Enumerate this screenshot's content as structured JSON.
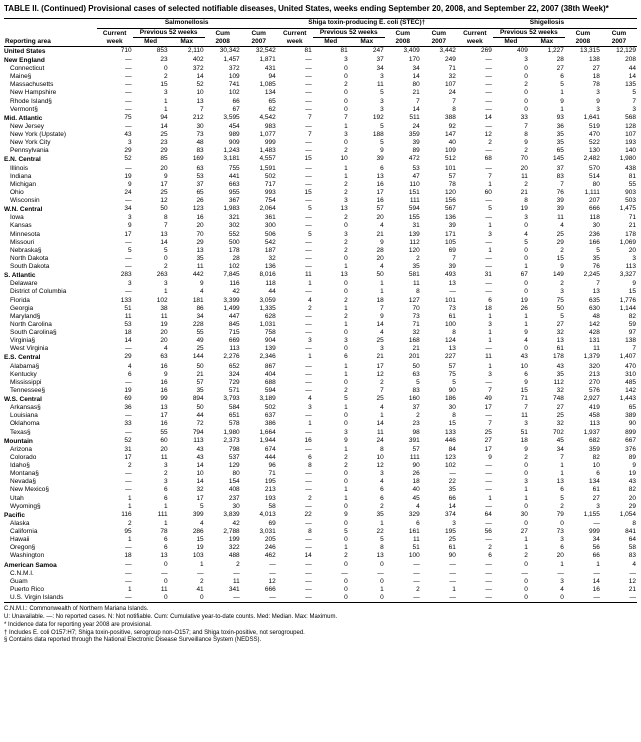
{
  "title": "TABLE II. (Continued) Provisional cases of selected notifiable diseases, United States, weeks ending September 20, 2008, and September 22, 2007 (38th Week)*",
  "diseases": [
    "Salmonellosis",
    "Shiga toxin-producing E. coli (STEC)†",
    "Shigellosis"
  ],
  "period_label": "Previous 52 weeks",
  "cols": [
    "Current week",
    "Med",
    "Max",
    "Cum 2008",
    "Cum 2007"
  ],
  "reporting_label": "Reporting area",
  "footnotes": [
    "C.N.M.I.: Commonwealth of Northern Mariana Islands.",
    "U: Unavailable.   —: No reported cases.   N: Not notifiable.   Cum: Cumulative year-to-date counts.   Med: Median.   Max: Maximum.",
    "* Incidence data for reporting year 2008 are provisional.",
    "† Includes E. coli O157:H7; Shiga toxin-positive, serogroup non-O157; and Shiga toxin-positive, not serogrouped.",
    "§ Contains data reported through the National Electronic Disease Surveillance System (NEDSS)."
  ],
  "sections": [
    {
      "h": [
        "United States",
        "710",
        "853",
        "2,110",
        "30,342",
        "32,542",
        "81",
        "81",
        "247",
        "3,409",
        "3,442",
        "269",
        "409",
        "1,227",
        "13,315",
        "12,129"
      ],
      "r": []
    },
    {
      "h": [
        "New England",
        "—",
        "23",
        "402",
        "1,457",
        "1,871",
        "—",
        "3",
        "37",
        "170",
        "249",
        "—",
        "3",
        "28",
        "138",
        "208"
      ],
      "r": [
        [
          "Connecticut",
          "—",
          "0",
          "372",
          "372",
          "431",
          "—",
          "0",
          "34",
          "34",
          "71",
          "—",
          "0",
          "27",
          "27",
          "44"
        ],
        [
          "Maine§",
          "—",
          "2",
          "14",
          "109",
          "94",
          "—",
          "0",
          "3",
          "14",
          "32",
          "—",
          "0",
          "6",
          "18",
          "14"
        ],
        [
          "Massachusetts",
          "—",
          "15",
          "52",
          "741",
          "1,085",
          "—",
          "2",
          "11",
          "80",
          "107",
          "—",
          "2",
          "5",
          "78",
          "135"
        ],
        [
          "New Hampshire",
          "—",
          "3",
          "10",
          "102",
          "134",
          "—",
          "0",
          "5",
          "21",
          "24",
          "—",
          "0",
          "1",
          "3",
          "5"
        ],
        [
          "Rhode Island§",
          "—",
          "1",
          "13",
          "66",
          "65",
          "—",
          "0",
          "3",
          "7",
          "7",
          "—",
          "0",
          "9",
          "9",
          "7"
        ],
        [
          "Vermont§",
          "—",
          "1",
          "7",
          "67",
          "62",
          "—",
          "0",
          "3",
          "14",
          "8",
          "—",
          "0",
          "1",
          "3",
          "3"
        ]
      ]
    },
    {
      "h": [
        "Mid. Atlantic",
        "75",
        "94",
        "212",
        "3,595",
        "4,542",
        "7",
        "7",
        "192",
        "511",
        "388",
        "14",
        "33",
        "93",
        "1,641",
        "568"
      ],
      "r": [
        [
          "New Jersey",
          "—",
          "14",
          "30",
          "454",
          "983",
          "—",
          "1",
          "5",
          "24",
          "92",
          "—",
          "7",
          "36",
          "519",
          "128"
        ],
        [
          "New York (Upstate)",
          "43",
          "25",
          "73",
          "989",
          "1,077",
          "7",
          "3",
          "188",
          "359",
          "147",
          "12",
          "8",
          "35",
          "470",
          "107"
        ],
        [
          "New York City",
          "3",
          "23",
          "48",
          "909",
          "999",
          "—",
          "0",
          "5",
          "39",
          "40",
          "2",
          "9",
          "35",
          "522",
          "193"
        ],
        [
          "Pennsylvania",
          "29",
          "29",
          "83",
          "1,243",
          "1,483",
          "—",
          "2",
          "9",
          "89",
          "109",
          "—",
          "2",
          "65",
          "130",
          "140"
        ]
      ]
    },
    {
      "h": [
        "E.N. Central",
        "52",
        "85",
        "169",
        "3,181",
        "4,557",
        "15",
        "10",
        "39",
        "472",
        "512",
        "68",
        "70",
        "145",
        "2,482",
        "1,980"
      ],
      "r": [
        [
          "Illinois",
          "—",
          "20",
          "63",
          "755",
          "1,591",
          "—",
          "1",
          "6",
          "53",
          "101",
          "—",
          "20",
          "37",
          "570",
          "438"
        ],
        [
          "Indiana",
          "19",
          "9",
          "53",
          "441",
          "502",
          "—",
          "1",
          "13",
          "47",
          "57",
          "7",
          "11",
          "83",
          "514",
          "81"
        ],
        [
          "Michigan",
          "9",
          "17",
          "37",
          "663",
          "717",
          "—",
          "2",
          "16",
          "110",
          "78",
          "1",
          "2",
          "7",
          "80",
          "55"
        ],
        [
          "Ohio",
          "24",
          "25",
          "65",
          "955",
          "993",
          "15",
          "2",
          "17",
          "151",
          "120",
          "60",
          "21",
          "76",
          "1,111",
          "903"
        ],
        [
          "Wisconsin",
          "—",
          "12",
          "26",
          "367",
          "754",
          "—",
          "3",
          "16",
          "111",
          "156",
          "—",
          "8",
          "39",
          "207",
          "503"
        ]
      ]
    },
    {
      "h": [
        "W.N. Central",
        "34",
        "50",
        "123",
        "1,983",
        "2,064",
        "5",
        "13",
        "57",
        "594",
        "567",
        "5",
        "19",
        "39",
        "666",
        "1,475"
      ],
      "r": [
        [
          "Iowa",
          "3",
          "8",
          "16",
          "321",
          "361",
          "—",
          "2",
          "20",
          "155",
          "136",
          "—",
          "3",
          "11",
          "118",
          "71"
        ],
        [
          "Kansas",
          "9",
          "7",
          "20",
          "302",
          "300",
          "—",
          "0",
          "4",
          "31",
          "39",
          "1",
          "0",
          "4",
          "30",
          "21"
        ],
        [
          "Minnesota",
          "17",
          "13",
          "70",
          "552",
          "506",
          "5",
          "3",
          "21",
          "139",
          "171",
          "3",
          "4",
          "25",
          "236",
          "178"
        ],
        [
          "Missouri",
          "—",
          "14",
          "29",
          "500",
          "542",
          "—",
          "2",
          "9",
          "112",
          "105",
          "—",
          "5",
          "29",
          "166",
          "1,069"
        ],
        [
          "Nebraska§",
          "5",
          "5",
          "13",
          "178",
          "187",
          "—",
          "2",
          "28",
          "120",
          "69",
          "1",
          "0",
          "2",
          "5",
          "20"
        ],
        [
          "North Dakota",
          "—",
          "0",
          "35",
          "28",
          "32",
          "—",
          "0",
          "20",
          "2",
          "7",
          "—",
          "0",
          "15",
          "35",
          "3"
        ],
        [
          "South Dakota",
          "—",
          "2",
          "11",
          "102",
          "136",
          "—",
          "1",
          "4",
          "35",
          "39",
          "—",
          "1",
          "9",
          "76",
          "113"
        ]
      ]
    },
    {
      "h": [
        "S. Atlantic",
        "283",
        "263",
        "442",
        "7,845",
        "8,016",
        "11",
        "13",
        "50",
        "581",
        "493",
        "31",
        "67",
        "149",
        "2,245",
        "3,327"
      ],
      "r": [
        [
          "Delaware",
          "3",
          "3",
          "9",
          "116",
          "118",
          "1",
          "0",
          "1",
          "11",
          "13",
          "—",
          "0",
          "2",
          "7",
          "9"
        ],
        [
          "District of Columbia",
          "—",
          "1",
          "4",
          "42",
          "44",
          "—",
          "0",
          "1",
          "8",
          "—",
          "—",
          "0",
          "3",
          "13",
          "15"
        ],
        [
          "Florida",
          "133",
          "102",
          "181",
          "3,399",
          "3,059",
          "4",
          "2",
          "18",
          "127",
          "101",
          "6",
          "19",
          "75",
          "635",
          "1,776"
        ],
        [
          "Georgia",
          "51",
          "38",
          "86",
          "1,499",
          "1,335",
          "2",
          "1",
          "7",
          "70",
          "73",
          "18",
          "26",
          "50",
          "630",
          "1,144"
        ],
        [
          "Maryland§",
          "11",
          "11",
          "34",
          "447",
          "628",
          "—",
          "2",
          "9",
          "73",
          "61",
          "1",
          "1",
          "5",
          "48",
          "82"
        ],
        [
          "North Carolina",
          "53",
          "19",
          "228",
          "845",
          "1,031",
          "—",
          "1",
          "14",
          "71",
          "100",
          "3",
          "1",
          "27",
          "142",
          "59"
        ],
        [
          "South Carolina§",
          "18",
          "20",
          "55",
          "715",
          "758",
          "—",
          "0",
          "4",
          "32",
          "8",
          "1",
          "9",
          "32",
          "428",
          "97"
        ],
        [
          "Virginia§",
          "14",
          "20",
          "49",
          "669",
          "904",
          "3",
          "3",
          "25",
          "168",
          "124",
          "1",
          "4",
          "13",
          "131",
          "138"
        ],
        [
          "West Virginia",
          "—",
          "4",
          "25",
          "113",
          "139",
          "—",
          "0",
          "3",
          "21",
          "13",
          "—",
          "0",
          "61",
          "11",
          "7"
        ]
      ]
    },
    {
      "h": [
        "E.S. Central",
        "29",
        "63",
        "144",
        "2,276",
        "2,346",
        "1",
        "6",
        "21",
        "201",
        "227",
        "11",
        "43",
        "178",
        "1,379",
        "1,407"
      ],
      "r": [
        [
          "Alabama§",
          "4",
          "16",
          "50",
          "652",
          "867",
          "—",
          "1",
          "17",
          "50",
          "57",
          "1",
          "10",
          "43",
          "320",
          "470"
        ],
        [
          "Kentucky",
          "6",
          "9",
          "21",
          "324",
          "404",
          "—",
          "1",
          "12",
          "63",
          "75",
          "3",
          "6",
          "35",
          "213",
          "310"
        ],
        [
          "Mississippi",
          "—",
          "16",
          "57",
          "729",
          "688",
          "—",
          "0",
          "2",
          "5",
          "5",
          "—",
          "9",
          "112",
          "270",
          "485"
        ],
        [
          "Tennessee§",
          "19",
          "16",
          "35",
          "571",
          "594",
          "—",
          "2",
          "7",
          "83",
          "90",
          "7",
          "15",
          "32",
          "576",
          "142"
        ]
      ]
    },
    {
      "h": [
        "W.S. Central",
        "69",
        "99",
        "894",
        "3,793",
        "3,189",
        "4",
        "5",
        "25",
        "160",
        "186",
        "49",
        "71",
        "748",
        "2,927",
        "1,443"
      ],
      "r": [
        [
          "Arkansas§",
          "36",
          "13",
          "50",
          "584",
          "502",
          "3",
          "1",
          "4",
          "37",
          "30",
          "17",
          "7",
          "27",
          "419",
          "65"
        ],
        [
          "Louisiana",
          "—",
          "17",
          "44",
          "651",
          "637",
          "—",
          "0",
          "1",
          "2",
          "8",
          "—",
          "11",
          "25",
          "458",
          "389"
        ],
        [
          "Oklahoma",
          "33",
          "16",
          "72",
          "578",
          "386",
          "1",
          "0",
          "14",
          "23",
          "15",
          "7",
          "3",
          "32",
          "113",
          "90"
        ],
        [
          "Texas§",
          "—",
          "55",
          "794",
          "1,980",
          "1,664",
          "—",
          "3",
          "11",
          "98",
          "133",
          "25",
          "51",
          "702",
          "1,937",
          "899"
        ]
      ]
    },
    {
      "h": [
        "Mountain",
        "52",
        "60",
        "113",
        "2,373",
        "1,944",
        "16",
        "9",
        "24",
        "391",
        "446",
        "27",
        "18",
        "45",
        "682",
        "667"
      ],
      "r": [
        [
          "Arizona",
          "31",
          "20",
          "43",
          "798",
          "674",
          "—",
          "1",
          "8",
          "57",
          "84",
          "17",
          "9",
          "34",
          "359",
          "376"
        ],
        [
          "Colorado",
          "17",
          "11",
          "43",
          "537",
          "444",
          "6",
          "2",
          "10",
          "111",
          "123",
          "9",
          "2",
          "7",
          "82",
          "89"
        ],
        [
          "Idaho§",
          "2",
          "3",
          "14",
          "129",
          "96",
          "8",
          "2",
          "12",
          "90",
          "102",
          "—",
          "0",
          "1",
          "10",
          "9"
        ],
        [
          "Montana§",
          "—",
          "2",
          "10",
          "80",
          "71",
          "—",
          "0",
          "3",
          "26",
          "—",
          "—",
          "0",
          "1",
          "6",
          "19"
        ],
        [
          "Nevada§",
          "—",
          "3",
          "14",
          "154",
          "195",
          "—",
          "0",
          "4",
          "18",
          "22",
          "—",
          "3",
          "13",
          "134",
          "43"
        ],
        [
          "New Mexico§",
          "—",
          "6",
          "32",
          "408",
          "213",
          "—",
          "1",
          "6",
          "40",
          "35",
          "—",
          "1",
          "6",
          "61",
          "82"
        ],
        [
          "Utah",
          "1",
          "6",
          "17",
          "237",
          "193",
          "2",
          "1",
          "6",
          "45",
          "66",
          "1",
          "1",
          "5",
          "27",
          "20"
        ],
        [
          "Wyoming§",
          "1",
          "1",
          "5",
          "30",
          "58",
          "—",
          "0",
          "2",
          "4",
          "14",
          "—",
          "0",
          "2",
          "3",
          "29"
        ]
      ]
    },
    {
      "h": [
        "Pacific",
        "116",
        "111",
        "399",
        "3,839",
        "4,013",
        "22",
        "9",
        "35",
        "329",
        "374",
        "64",
        "30",
        "79",
        "1,155",
        "1,054"
      ],
      "r": [
        [
          "Alaska",
          "2",
          "1",
          "4",
          "42",
          "69",
          "—",
          "0",
          "1",
          "6",
          "3",
          "—",
          "0",
          "0",
          "—",
          "8"
        ],
        [
          "California",
          "95",
          "78",
          "286",
          "2,788",
          "3,031",
          "8",
          "5",
          "22",
          "161",
          "195",
          "56",
          "27",
          "73",
          "999",
          "841"
        ],
        [
          "Hawaii",
          "1",
          "6",
          "15",
          "199",
          "205",
          "—",
          "0",
          "5",
          "11",
          "25",
          "—",
          "1",
          "3",
          "34",
          "64"
        ],
        [
          "Oregon§",
          "—",
          "6",
          "19",
          "322",
          "246",
          "—",
          "1",
          "8",
          "51",
          "61",
          "2",
          "1",
          "6",
          "56",
          "58"
        ],
        [
          "Washington",
          "18",
          "13",
          "103",
          "488",
          "462",
          "14",
          "2",
          "13",
          "100",
          "90",
          "6",
          "2",
          "20",
          "66",
          "83"
        ]
      ]
    },
    {
      "h": [
        "American Samoa",
        "—",
        "0",
        "1",
        "2",
        "—",
        "—",
        "0",
        "0",
        "—",
        "—",
        "—",
        "0",
        "1",
        "1",
        "4"
      ],
      "r": [
        [
          "C.N.M.I.",
          "—",
          "—",
          "—",
          "—",
          "—",
          "—",
          "—",
          "—",
          "—",
          "—",
          "—",
          "—",
          "—",
          "—",
          "—"
        ],
        [
          "Guam",
          "—",
          "0",
          "2",
          "11",
          "12",
          "—",
          "0",
          "0",
          "—",
          "—",
          "—",
          "0",
          "3",
          "14",
          "12"
        ],
        [
          "Puerto Rico",
          "1",
          "11",
          "41",
          "341",
          "666",
          "—",
          "0",
          "1",
          "2",
          "1",
          "—",
          "0",
          "4",
          "16",
          "21"
        ],
        [
          "U.S. Virgin Islands",
          "—",
          "0",
          "0",
          "—",
          "—",
          "—",
          "0",
          "0",
          "—",
          "—",
          "—",
          "0",
          "0",
          "—",
          "—"
        ]
      ]
    }
  ]
}
